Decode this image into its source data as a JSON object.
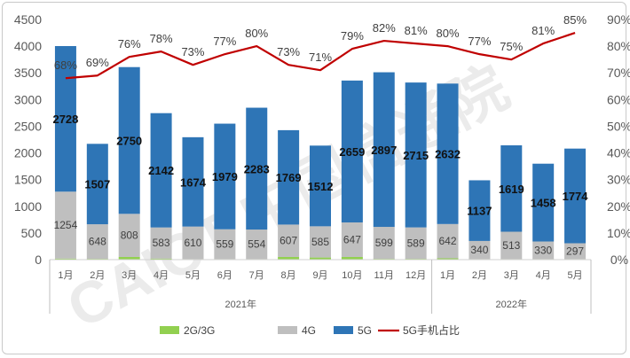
{
  "chart_data": {
    "type": "bar",
    "stacked": true,
    "categories": [
      "1月",
      "2月",
      "3月",
      "4月",
      "5月",
      "6月",
      "7月",
      "8月",
      "9月",
      "10月",
      "11月",
      "12月",
      "1月",
      "2月",
      "3月",
      "4月",
      "5月"
    ],
    "year_groups": [
      {
        "label": "2021年",
        "count": 12
      },
      {
        "label": "2022年",
        "count": 5
      }
    ],
    "series": [
      {
        "name": "2G/3G",
        "type": "bar",
        "color": "#92d050",
        "values": [
          20,
          15,
          50,
          20,
          10,
          10,
          10,
          50,
          40,
          50,
          15,
          15,
          25,
          10,
          10,
          10,
          10
        ]
      },
      {
        "name": "4G",
        "type": "bar",
        "color": "#bfbfbf",
        "values": [
          1254,
          648,
          808,
          583,
          610,
          559,
          554,
          607,
          585,
          647,
          599,
          589,
          642,
          340,
          513,
          330,
          297
        ]
      },
      {
        "name": "5G",
        "type": "bar",
        "color": "#2e75b6",
        "values": [
          2728,
          1507,
          2750,
          2142,
          1674,
          1979,
          2283,
          1769,
          1512,
          2659,
          2897,
          2715,
          2632,
          1137,
          1619,
          1458,
          1774
        ]
      },
      {
        "name": "5G手机占比",
        "type": "line",
        "axis": "right",
        "color": "#c00000",
        "values": [
          68,
          69,
          76,
          78,
          73,
          77,
          80,
          73,
          71,
          79,
          82,
          81,
          80,
          77,
          75,
          81,
          85
        ]
      }
    ],
    "labels_4g": [
      "1254",
      "648",
      "808",
      "583",
      "610",
      "559",
      "554",
      "607",
      "585",
      "647",
      "599",
      "589",
      "642",
      "340",
      "513",
      "330",
      "297"
    ],
    "labels_5g": [
      "2728",
      "1507",
      "2750",
      "2142",
      "1674",
      "1979",
      "2283",
      "1769",
      "1512",
      "2659",
      "2897",
      "2715",
      "2632",
      "1137",
      "1619",
      "1458",
      "1774"
    ],
    "labels_pct": [
      "68%",
      "69%",
      "76%",
      "78%",
      "73%",
      "77%",
      "80%",
      "73%",
      "71%",
      "79%",
      "82%",
      "81%",
      "80%",
      "77%",
      "75%",
      "81%",
      "85%"
    ],
    "y_left": {
      "min": 0,
      "max": 4500,
      "ticks": [
        "0",
        "500",
        "1000",
        "1500",
        "2000",
        "2500",
        "3000",
        "3500",
        "4000",
        "4500"
      ]
    },
    "y_right": {
      "min": 0,
      "max": 90,
      "ticks": [
        "0%",
        "10%",
        "20%",
        "30%",
        "40%",
        "50%",
        "60%",
        "70%",
        "80%",
        "90%"
      ]
    },
    "legend": {
      "position": "bottom",
      "items": [
        {
          "label": "2G/3G",
          "color": "#92d050",
          "kind": "box"
        },
        {
          "label": "4G",
          "color": "#bfbfbf",
          "kind": "box"
        },
        {
          "label": "5G",
          "color": "#2e75b6",
          "kind": "box"
        },
        {
          "label": "5G手机占比",
          "color": "#c00000",
          "kind": "line"
        }
      ]
    },
    "grid": false
  },
  "watermark": {
    "text": "CAICT 中国信通院"
  }
}
